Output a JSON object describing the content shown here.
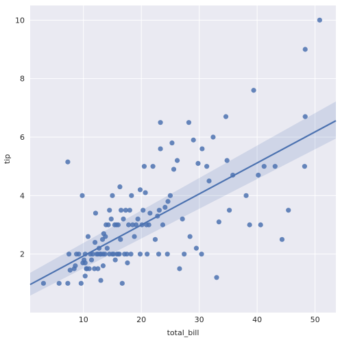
{
  "chart_data": {
    "type": "scatter",
    "title": "",
    "xlabel": "total_bill",
    "ylabel": "tip",
    "xlim": [
      0.8,
      53.6
    ],
    "ylim": [
      0.0,
      10.5
    ],
    "xticks": [
      10,
      20,
      30,
      40,
      50
    ],
    "yticks": [
      2,
      4,
      6,
      8,
      10
    ],
    "grid": true,
    "colors": {
      "background": "#eaeaf2",
      "grid": "#ffffff",
      "points": "#4c72b0",
      "line": "#4c72b0",
      "band": "#4c72b0"
    },
    "regression": {
      "x_range": [
        0.8,
        53.6
      ],
      "fit": [
        0.96,
        6.56
      ],
      "ci_lower": [
        0.58,
        5.95
      ],
      "ci_upper": [
        1.36,
        7.22
      ]
    },
    "points": [
      [
        3.1,
        1.0
      ],
      [
        5.8,
        1.0
      ],
      [
        7.3,
        1.0
      ],
      [
        7.3,
        5.15
      ],
      [
        7.5,
        2.0
      ],
      [
        7.7,
        1.45
      ],
      [
        8.4,
        1.5
      ],
      [
        8.6,
        1.6
      ],
      [
        8.8,
        2.0
      ],
      [
        9.2,
        2.0
      ],
      [
        9.6,
        1.0
      ],
      [
        9.8,
        4.0
      ],
      [
        9.9,
        1.7
      ],
      [
        10.1,
        1.8
      ],
      [
        10.3,
        1.7
      ],
      [
        10.3,
        2.0
      ],
      [
        10.3,
        1.25
      ],
      [
        10.5,
        1.5
      ],
      [
        10.6,
        1.5
      ],
      [
        10.8,
        2.6
      ],
      [
        11.0,
        1.5
      ],
      [
        11.2,
        2.0
      ],
      [
        11.4,
        1.8
      ],
      [
        11.6,
        2.0
      ],
      [
        11.9,
        1.5
      ],
      [
        12.0,
        2.4
      ],
      [
        12.1,
        3.4
      ],
      [
        12.3,
        2.0
      ],
      [
        12.5,
        2.0
      ],
      [
        12.5,
        1.5
      ],
      [
        12.7,
        2.2
      ],
      [
        12.9,
        2.0
      ],
      [
        13.0,
        2.0
      ],
      [
        13.0,
        1.1
      ],
      [
        13.3,
        2.5
      ],
      [
        13.4,
        2.0
      ],
      [
        13.4,
        1.6
      ],
      [
        13.5,
        2.7
      ],
      [
        13.7,
        2.0
      ],
      [
        13.8,
        2.6
      ],
      [
        13.9,
        3.0
      ],
      [
        14.1,
        2.2
      ],
      [
        14.3,
        3.0
      ],
      [
        14.5,
        2.0
      ],
      [
        14.5,
        3.5
      ],
      [
        14.8,
        3.2
      ],
      [
        15.0,
        2.0
      ],
      [
        15.0,
        4.0
      ],
      [
        15.2,
        2.0
      ],
      [
        15.4,
        3.0
      ],
      [
        15.5,
        1.8
      ],
      [
        15.7,
        3.0
      ],
      [
        15.8,
        2.0
      ],
      [
        16.0,
        2.0
      ],
      [
        16.0,
        3.0
      ],
      [
        16.2,
        2.0
      ],
      [
        16.3,
        4.3
      ],
      [
        16.4,
        2.5
      ],
      [
        16.5,
        3.5
      ],
      [
        16.7,
        1.0
      ],
      [
        16.9,
        3.2
      ],
      [
        17.1,
        2.0
      ],
      [
        17.3,
        3.5
      ],
      [
        17.5,
        2.0
      ],
      [
        17.6,
        1.7
      ],
      [
        17.8,
        3.0
      ],
      [
        18.0,
        3.5
      ],
      [
        18.2,
        2.0
      ],
      [
        18.3,
        4.0
      ],
      [
        18.5,
        3.0
      ],
      [
        18.8,
        2.6
      ],
      [
        19.1,
        3.0
      ],
      [
        19.4,
        3.2
      ],
      [
        19.8,
        4.2
      ],
      [
        19.8,
        2.0
      ],
      [
        20.1,
        3.0
      ],
      [
        20.3,
        3.5
      ],
      [
        20.5,
        5.0
      ],
      [
        20.7,
        4.1
      ],
      [
        20.9,
        3.0
      ],
      [
        21.0,
        2.0
      ],
      [
        21.3,
        3.0
      ],
      [
        21.5,
        3.4
      ],
      [
        22.0,
        5.0
      ],
      [
        22.4,
        2.5
      ],
      [
        22.8,
        3.3
      ],
      [
        23.0,
        2.0
      ],
      [
        23.1,
        3.5
      ],
      [
        23.3,
        6.5
      ],
      [
        23.3,
        5.6
      ],
      [
        23.7,
        3.0
      ],
      [
        24.1,
        3.6
      ],
      [
        24.5,
        2.0
      ],
      [
        24.6,
        3.8
      ],
      [
        25.0,
        4.0
      ],
      [
        25.3,
        5.8
      ],
      [
        25.6,
        4.9
      ],
      [
        26.2,
        5.2
      ],
      [
        26.6,
        1.5
      ],
      [
        27.1,
        3.2
      ],
      [
        27.4,
        2.0
      ],
      [
        28.2,
        6.5
      ],
      [
        28.4,
        2.6
      ],
      [
        29.0,
        5.9
      ],
      [
        29.5,
        2.2
      ],
      [
        29.8,
        5.1
      ],
      [
        30.4,
        2.0
      ],
      [
        30.5,
        5.6
      ],
      [
        31.3,
        5.0
      ],
      [
        31.7,
        4.5
      ],
      [
        32.4,
        6.0
      ],
      [
        33.0,
        1.2
      ],
      [
        33.4,
        3.1
      ],
      [
        34.6,
        6.7
      ],
      [
        34.8,
        5.2
      ],
      [
        35.2,
        3.5
      ],
      [
        35.8,
        4.7
      ],
      [
        38.1,
        4.0
      ],
      [
        38.7,
        3.0
      ],
      [
        39.4,
        7.6
      ],
      [
        40.2,
        4.7
      ],
      [
        40.6,
        3.0
      ],
      [
        41.2,
        5.0
      ],
      [
        43.1,
        5.0
      ],
      [
        44.3,
        2.5
      ],
      [
        45.4,
        3.5
      ],
      [
        48.2,
        5.0
      ],
      [
        48.3,
        6.7
      ],
      [
        48.3,
        9.0
      ],
      [
        50.8,
        10.0
      ]
    ]
  }
}
